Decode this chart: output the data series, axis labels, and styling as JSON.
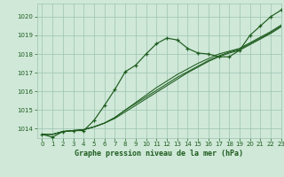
{
  "title": "Graphe pression niveau de la mer (hPa)",
  "bg_color": "#cfe8d8",
  "plot_bg_color": "#cfe8d8",
  "grid_color": "#9dc4b0",
  "line_color": "#1e5c1e",
  "xlim": [
    -0.5,
    23
  ],
  "ylim": [
    1013.5,
    1020.7
  ],
  "yticks": [
    1014,
    1015,
    1016,
    1017,
    1018,
    1019,
    1020
  ],
  "xtick_labels": [
    "0",
    "1",
    "2",
    "3",
    "4",
    "5",
    "6",
    "7",
    "8",
    "9",
    "10",
    "11",
    "12",
    "13",
    "14",
    "15",
    "16",
    "17",
    "18",
    "19",
    "20",
    "21",
    "22",
    "23"
  ],
  "series_main": [
    1013.7,
    1013.55,
    1013.85,
    1013.9,
    1013.9,
    1014.45,
    1015.25,
    1016.1,
    1017.05,
    1017.4,
    1018.0,
    1018.55,
    1018.85,
    1018.75,
    1018.3,
    1018.05,
    1018.0,
    1017.85,
    1017.85,
    1018.2,
    1019.0,
    1019.5,
    1020.0,
    1020.35
  ],
  "series_linear": [
    [
      1013.7,
      1013.7,
      1013.85,
      1013.9,
      1013.95,
      1014.1,
      1014.3,
      1014.55,
      1014.9,
      1015.25,
      1015.6,
      1015.95,
      1016.3,
      1016.65,
      1017.0,
      1017.3,
      1017.6,
      1017.85,
      1018.05,
      1018.2,
      1018.5,
      1018.8,
      1019.1,
      1019.45
    ],
    [
      1013.7,
      1013.7,
      1013.85,
      1013.9,
      1013.95,
      1014.1,
      1014.3,
      1014.6,
      1015.0,
      1015.35,
      1015.7,
      1016.05,
      1016.4,
      1016.75,
      1017.05,
      1017.35,
      1017.65,
      1017.9,
      1018.1,
      1018.25,
      1018.55,
      1018.85,
      1019.15,
      1019.5
    ],
    [
      1013.7,
      1013.7,
      1013.85,
      1013.9,
      1013.95,
      1014.1,
      1014.3,
      1014.6,
      1015.0,
      1015.4,
      1015.8,
      1016.2,
      1016.55,
      1016.9,
      1017.2,
      1017.5,
      1017.75,
      1018.0,
      1018.15,
      1018.3,
      1018.6,
      1018.9,
      1019.2,
      1019.55
    ]
  ]
}
